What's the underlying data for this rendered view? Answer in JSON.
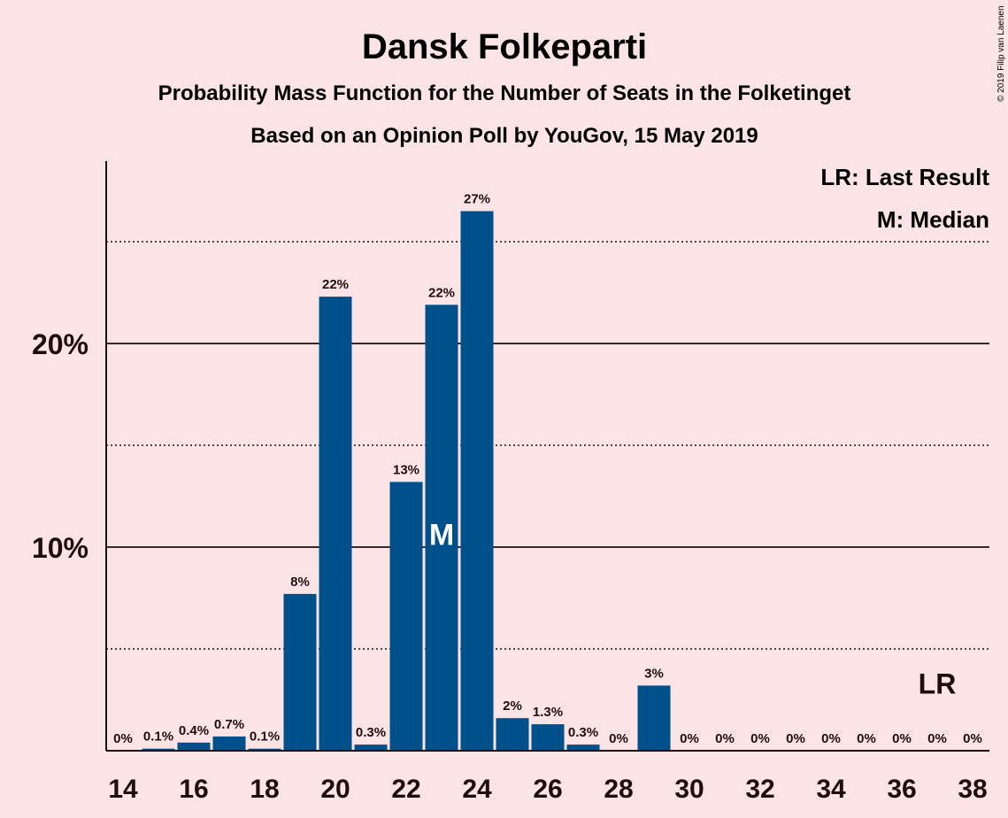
{
  "chart_data": {
    "type": "bar",
    "title": "Dansk Folkeparti",
    "subtitle1": "Probability Mass Function for the Number of Seats in the Folketinget",
    "subtitle2": "Based on an Opinion Poll by YouGov, 15 May 2019",
    "copyright": "© 2019 Filip van Laenen",
    "legend_lr": "LR: Last Result",
    "legend_m": "M: Median",
    "median_marker": "M",
    "median_seat": 23,
    "last_result_marker": "LR",
    "last_result_seat": 37,
    "bar_color": "#00508c",
    "categories": [
      14,
      15,
      16,
      17,
      18,
      19,
      20,
      21,
      22,
      23,
      24,
      25,
      26,
      27,
      28,
      29,
      30,
      31,
      32,
      33,
      34,
      35,
      36,
      37,
      38
    ],
    "values": [
      0,
      0.1,
      0.4,
      0.7,
      0.1,
      7.7,
      22.3,
      0.3,
      13.2,
      21.9,
      26.5,
      1.6,
      1.3,
      0.3,
      0,
      3.2,
      0,
      0,
      0,
      0,
      0,
      0,
      0,
      0,
      0
    ],
    "value_labels": [
      "0%",
      "0.1%",
      "0.4%",
      "0.7%",
      "0.1%",
      "8%",
      "22%",
      "0.3%",
      "13%",
      "22%",
      "27%",
      "2%",
      "1.3%",
      "0.3%",
      "0%",
      "3%",
      "0%",
      "0%",
      "0%",
      "0%",
      "0%",
      "0%",
      "0%",
      "0%",
      "0%"
    ],
    "x_tick_labels": [
      "14",
      "16",
      "18",
      "20",
      "22",
      "24",
      "26",
      "28",
      "30",
      "32",
      "34",
      "36",
      "38"
    ],
    "y_tick_labels": [
      "10%",
      "20%"
    ],
    "ylim": [
      0,
      29
    ],
    "grid": true
  }
}
